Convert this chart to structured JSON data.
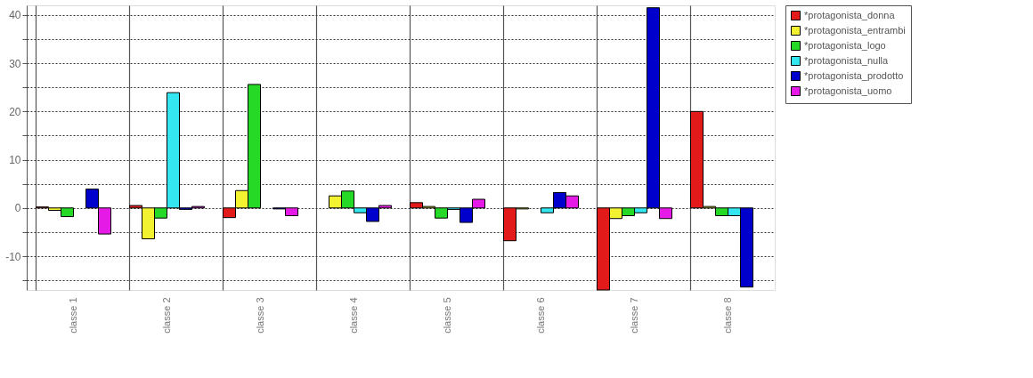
{
  "chart_data": {
    "type": "bar",
    "categories": [
      "classe 1",
      "classe 2",
      "classe 3",
      "classe 4",
      "classe 5",
      "classe 6",
      "classe 7",
      "classe 8"
    ],
    "series": [
      {
        "name": "*protagonista_donna",
        "color": "#e31a1a",
        "values": [
          0.2,
          0.5,
          -2.0,
          null,
          1.1,
          -6.8,
          -17.0,
          20.0
        ]
      },
      {
        "name": "*protagonista_entrambi",
        "color": "#f2f230",
        "values": [
          -0.5,
          -6.4,
          3.6,
          2.5,
          0.3,
          -0.2,
          -2.2,
          0.3
        ]
      },
      {
        "name": "*protagonista_logo",
        "color": "#26d926",
        "values": [
          -1.8,
          -2.1,
          25.6,
          3.5,
          -2.1,
          null,
          -1.6,
          -1.6
        ]
      },
      {
        "name": "*protagonista_nulla",
        "color": "#33e6f0",
        "values": [
          null,
          23.9,
          null,
          -1.0,
          -0.3,
          -1.0,
          -1.0,
          -1.6
        ]
      },
      {
        "name": "*protagonista_prodotto",
        "color": "#0000cc",
        "values": [
          3.9,
          -0.3,
          -0.2,
          -2.8,
          -3.0,
          3.2,
          41.5,
          -16.4
        ]
      },
      {
        "name": "*protagonista_uomo",
        "color": "#e61ae6",
        "values": [
          -5.4,
          0.3,
          -1.6,
          0.5,
          1.8,
          2.5,
          -2.2,
          null
        ]
      }
    ],
    "ylim": [
      -17,
      42
    ],
    "yticks": [
      {
        "value": -15,
        "label": null
      },
      -10,
      {
        "value": -5,
        "label": null
      },
      0,
      {
        "value": 5,
        "label": null
      },
      10,
      {
        "value": 15,
        "label": null
      },
      20,
      {
        "value": 25,
        "label": null
      },
      30,
      {
        "value": 35,
        "label": null
      },
      40
    ],
    "grid": true,
    "legend": "right"
  }
}
